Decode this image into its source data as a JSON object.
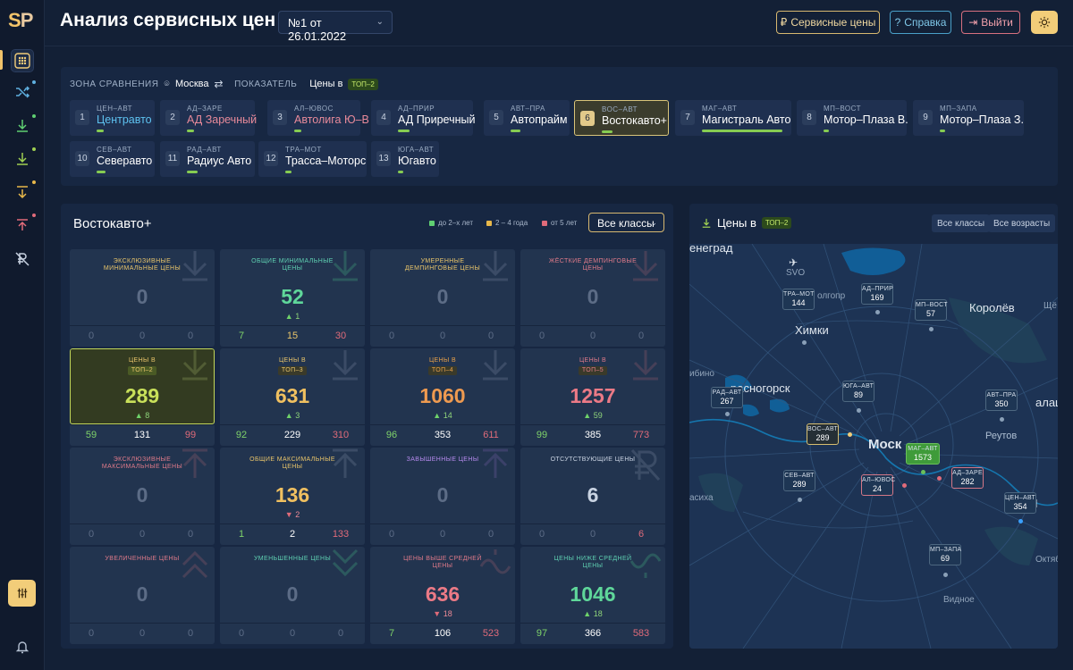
{
  "app": {
    "logo_left": "S",
    "logo_right": "P",
    "title": "Анализ сервисных цен"
  },
  "header": {
    "doc_select": "№1 от 26.01.2022",
    "service_prices_btn": "Сервисные цены",
    "help_btn": "Справка",
    "logout_btn": "Выйти"
  },
  "icons": {
    "sidebar": [
      "grid-icon",
      "shuffle-icon",
      "download-icon",
      "download-icon",
      "filter-down-icon",
      "upload-icon",
      "ruble-off-icon"
    ],
    "filter": "sliders-icon",
    "bell": "bell-icon",
    "theme": "sun-icon"
  },
  "colors": {
    "accent": "#f2cd79",
    "good": "#86cc52",
    "warn": "#e8a14a",
    "bad": "#e06b7a",
    "teal": "#5fd0b2"
  },
  "comparison": {
    "zone_label": "ЗОНА СРАВНЕНИЯ",
    "zone_value": "Москва",
    "indicator_label": "ПОКАЗАТЕЛЬ",
    "indicator_value": "Цены в",
    "indicator_tag": "ТОП–2",
    "competitors": [
      {
        "n": "1",
        "code": "ЦЕН–АВТ",
        "name": "Центравто",
        "color": "#5ec2f0",
        "bar": 0.15
      },
      {
        "n": "2",
        "code": "АД–ЗАРЕ",
        "name": "АД Заречный",
        "color": "#e88a9a",
        "bar": 0.12
      },
      {
        "n": "3",
        "code": "АЛ–ЮВОС",
        "name": "Автолига Ю–В",
        "color": "#e88a9a",
        "bar": 0.12
      },
      {
        "n": "4",
        "code": "АД–ПРИР",
        "name": "АД Приречный",
        "color": "#ffffff",
        "bar": 0.18
      },
      {
        "n": "5",
        "code": "АВТ–ПРА",
        "name": "Автопрайм",
        "color": "#ffffff",
        "bar": 0.2
      },
      {
        "n": "6",
        "code": "ВОС–АВТ",
        "name": "Востокавто+",
        "color": "#ffffff",
        "bar": 0.18
      },
      {
        "n": "7",
        "code": "МАГ–АВТ",
        "name": "Магистраль Авто",
        "color": "#ffffff",
        "bar": 1.0
      },
      {
        "n": "8",
        "code": "МП–ВОСТ",
        "name": "Мотор–Плаза В.",
        "color": "#ffffff",
        "bar": 0.06
      },
      {
        "n": "9",
        "code": "МП–ЗАПА",
        "name": "Мотор–Плаза З.",
        "color": "#ffffff",
        "bar": 0.06
      },
      {
        "n": "10",
        "code": "СЕВ–АВТ",
        "name": "Северавто",
        "color": "#ffffff",
        "bar": 0.18
      },
      {
        "n": "11",
        "code": "РАД–АВТ",
        "name": "Радиус Авто",
        "color": "#ffffff",
        "bar": 0.18
      },
      {
        "n": "12",
        "code": "ТРА–МОТ",
        "name": "Трасса–Моторс",
        "color": "#ffffff",
        "bar": 0.09
      },
      {
        "n": "13",
        "code": "ЮГА–АВТ",
        "name": "Югавто",
        "color": "#ffffff",
        "bar": 0.09
      }
    ]
  },
  "left_panel": {
    "title": "Востокавто+",
    "legend": [
      {
        "label": "до 2–х лет",
        "color": "#5fcf72"
      },
      {
        "label": "2 – 4 года",
        "color": "#e8b84a"
      },
      {
        "label": "от 5 лет",
        "color": "#e06b7a"
      }
    ],
    "class_select": "Все классы",
    "cells": [
      {
        "title": "ЭКСКЛЮЗИВНЫЕ МИНИМАЛЬНЫЕ ЦЕНЫ",
        "tcolor": "#e8c46a",
        "icon": "arrow-down-icon",
        "icolor": "#6a7a92",
        "value": "0",
        "vcolor": "#5c6c86",
        "change": "",
        "dir": "",
        "s": [
          "0",
          "0",
          "0"
        ],
        "scol": [
          "#5c6c86",
          "#5c6c86",
          "#5c6c86"
        ]
      },
      {
        "title": "ОБЩИЕ МИНИМАЛЬНЫЕ ЦЕНЫ",
        "tcolor": "#5fd0b2",
        "icon": "arrow-down-icon",
        "icolor": "#3fa07c",
        "value": "52",
        "vcolor": "#5fd79a",
        "change": "1",
        "dir": "up",
        "s": [
          "7",
          "15",
          "30"
        ],
        "scol": [
          "#7fd36a",
          "#e8c46a",
          "#e06b7a"
        ]
      },
      {
        "title": "УМЕРЕННЫЕ ДЕМПИНГОВЫЕ ЦЕНЫ",
        "tcolor": "#e8c46a",
        "icon": "arrow-down-icon",
        "icolor": "#6a7a92",
        "value": "0",
        "vcolor": "#5c6c86",
        "change": "",
        "dir": "",
        "s": [
          "0",
          "0",
          "0"
        ],
        "scol": [
          "#5c6c86",
          "#5c6c86",
          "#5c6c86"
        ]
      },
      {
        "title": "ЖЁСТКИЕ ДЕМПИНГОВЫЕ ЦЕНЫ",
        "tcolor": "#e07b8a",
        "icon": "arrow-down-icon",
        "icolor": "#8a5a6a",
        "value": "0",
        "vcolor": "#5c6c86",
        "change": "",
        "dir": "",
        "s": [
          "0",
          "0",
          "0"
        ],
        "scol": [
          "#5c6c86",
          "#5c6c86",
          "#5c6c86"
        ]
      },
      {
        "title": "ЦЕНЫ В",
        "rank": "ТОП–2",
        "tcolor": "#e8c46a",
        "icon": "arrow-down-icon",
        "icolor": "#8a9a5a",
        "value": "289",
        "vcolor": "#c9e05a",
        "change": "8",
        "dir": "up",
        "s": [
          "59",
          "131",
          "99"
        ],
        "scol": [
          "#7fd36a",
          "#ffffff",
          "#e06b7a"
        ],
        "selected": true
      },
      {
        "title": "ЦЕНЫ В",
        "rank": "ТОП–3",
        "tcolor": "#e8c46a",
        "icon": "arrow-down-icon",
        "icolor": "#6a7a92",
        "value": "631",
        "vcolor": "#f0c060",
        "change": "3",
        "dir": "up",
        "s": [
          "92",
          "229",
          "310"
        ],
        "scol": [
          "#7fd36a",
          "#ffffff",
          "#e06b7a"
        ]
      },
      {
        "title": "ЦЕНЫ В",
        "rank": "ТОП–4",
        "tcolor": "#e8a14a",
        "icon": "arrow-down-icon",
        "icolor": "#6a7a92",
        "value": "1060",
        "vcolor": "#ee9a50",
        "change": "14",
        "dir": "up",
        "s": [
          "96",
          "353",
          "611"
        ],
        "scol": [
          "#7fd36a",
          "#ffffff",
          "#e06b7a"
        ]
      },
      {
        "title": "ЦЕНЫ В",
        "rank": "ТОП–5",
        "tcolor": "#e07b8a",
        "icon": "arrow-down-icon",
        "icolor": "#8a5a6a",
        "value": "1257",
        "vcolor": "#ec7a86",
        "change": "59",
        "dir": "up",
        "s": [
          "99",
          "385",
          "773"
        ],
        "scol": [
          "#7fd36a",
          "#ffffff",
          "#e06b7a"
        ]
      },
      {
        "title": "ЭКСКЛЮЗИВНЫЕ МАКСИМАЛЬНЫЕ ЦЕНЫ",
        "tcolor": "#e07b8a",
        "icon": "arrow-up-icon",
        "icolor": "#8a5a6a",
        "value": "0",
        "vcolor": "#5c6c86",
        "change": "",
        "dir": "",
        "s": [
          "0",
          "0",
          "0"
        ],
        "scol": [
          "#5c6c86",
          "#5c6c86",
          "#5c6c86"
        ]
      },
      {
        "title": "ОБЩИЕ МАКСИМАЛЬНЫЕ ЦЕНЫ",
        "tcolor": "#e8c46a",
        "icon": "arrow-up-icon",
        "icolor": "#6a7a92",
        "value": "136",
        "vcolor": "#f0c060",
        "change": "2",
        "dir": "down",
        "s": [
          "1",
          "2",
          "133"
        ],
        "scol": [
          "#7fd36a",
          "#ffffff",
          "#e06b7a"
        ]
      },
      {
        "title": "ЗАВЫШЕННЫЕ ЦЕНЫ",
        "tcolor": "#b68aee",
        "icon": "arrow-up-icon",
        "icolor": "#6a5a9a",
        "value": "0",
        "vcolor": "#5c6c86",
        "change": "",
        "dir": "",
        "s": [
          "0",
          "0",
          "0"
        ],
        "scol": [
          "#5c6c86",
          "#5c6c86",
          "#5c6c86"
        ]
      },
      {
        "title": "ОТСУТСТВУЮЩИЕ ЦЕНЫ",
        "tcolor": "#c9d3e2",
        "icon": "ruble-off-icon",
        "icolor": "#6a7a92",
        "value": "6",
        "vcolor": "#c9d3e2",
        "change": "",
        "dir": "",
        "s": [
          "0",
          "0",
          "6"
        ],
        "scol": [
          "#5c6c86",
          "#5c6c86",
          "#e06b7a"
        ]
      },
      {
        "title": "УВЕЛИЧЕННЫЕ ЦЕНЫ",
        "tcolor": "#e07b8a",
        "icon": "chevrons-up-icon",
        "icolor": "#8a5a6a",
        "value": "0",
        "vcolor": "#5c6c86",
        "change": "",
        "dir": "",
        "s": [
          "0",
          "0",
          "0"
        ],
        "scol": [
          "#5c6c86",
          "#5c6c86",
          "#5c6c86"
        ]
      },
      {
        "title": "УМЕНЬШЕННЫЕ ЦЕНЫ",
        "tcolor": "#5fd0b2",
        "icon": "chevrons-down-icon",
        "icolor": "#3fa07c",
        "value": "0",
        "vcolor": "#5c6c86",
        "change": "",
        "dir": "",
        "s": [
          "0",
          "0",
          "0"
        ],
        "scol": [
          "#5c6c86",
          "#5c6c86",
          "#5c6c86"
        ]
      },
      {
        "title": "ЦЕНЫ ВЫШЕ СРЕДНЕЙ ЦЕНЫ",
        "tcolor": "#e07b8a",
        "icon": "wave-up-icon",
        "icolor": "#8a5a6a",
        "value": "636",
        "vcolor": "#ec7a86",
        "change": "18",
        "dir": "down",
        "s": [
          "7",
          "106",
          "523"
        ],
        "scol": [
          "#7fd36a",
          "#ffffff",
          "#e06b7a"
        ]
      },
      {
        "title": "ЦЕНЫ НИЖЕ СРЕДНЕЙ ЦЕНЫ",
        "tcolor": "#5fd0b2",
        "icon": "wave-down-icon",
        "icolor": "#3fa07c",
        "value": "1046",
        "vcolor": "#5fd79a",
        "change": "18",
        "dir": "up",
        "s": [
          "97",
          "366",
          "583"
        ],
        "scol": [
          "#7fd36a",
          "#ffffff",
          "#e06b7a"
        ]
      }
    ]
  },
  "right_panel": {
    "title": "Цены в",
    "title_tag": "ТОП–2",
    "btn_classes": "Все классы",
    "btn_ages": "Все возрасты",
    "cities": [
      "енеград",
      "SVO",
      "олгопр",
      "Химки",
      "Королёв",
      "Щё",
      "ибино",
      "расногорск",
      "Моск",
      "Реутов",
      "алаш",
      "асиха",
      "Л",
      "Октябр",
      "Видное"
    ],
    "markers": [
      {
        "code": "ТРА–МОТ",
        "value": "144",
        "style": ""
      },
      {
        "code": "АД–ПРИР",
        "value": "169",
        "style": ""
      },
      {
        "code": "МП–ВОСТ",
        "value": "57",
        "style": ""
      },
      {
        "code": "РАД–АВТ",
        "value": "267",
        "style": ""
      },
      {
        "code": "ЮГА–АВТ",
        "value": "89",
        "style": ""
      },
      {
        "code": "АВТ–ПРА",
        "value": "350",
        "style": ""
      },
      {
        "code": "ВОС–АВТ",
        "value": "289",
        "style": "y"
      },
      {
        "code": "МАГ–АВТ",
        "value": "1573",
        "style": "g"
      },
      {
        "code": "АД–ЗАРЕ",
        "value": "282",
        "style": "p"
      },
      {
        "code": "АЛ–ЮВОС",
        "value": "24",
        "style": "p"
      },
      {
        "code": "СЕВ–АВТ",
        "value": "289",
        "style": ""
      },
      {
        "code": "ЦЕН–АВТ",
        "value": "354",
        "style": ""
      },
      {
        "code": "МП–ЗАПА",
        "value": "69",
        "style": ""
      }
    ]
  }
}
